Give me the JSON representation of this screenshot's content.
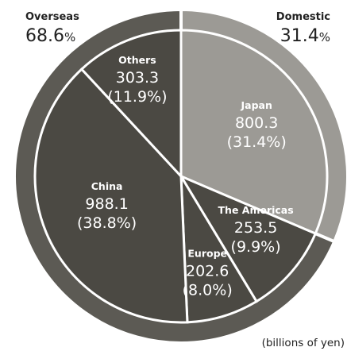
{
  "chart_data": {
    "type": "pie",
    "unit_note": "(billions of yen)",
    "groups": [
      {
        "name": "Domestic",
        "percent": "31.4",
        "percent_sign": "%",
        "color": "#9c9a95"
      },
      {
        "name": "Overseas",
        "percent": "68.6",
        "percent_sign": "%",
        "color": "#5c5a54"
      }
    ],
    "slices": [
      {
        "name": "Japan",
        "value": 800.3,
        "value_label": "800.3",
        "percent_label": "(31.4%)",
        "group": "Domestic",
        "color": "#9c9a95"
      },
      {
        "name": "The Americas",
        "value": 253.5,
        "value_label": "253.5",
        "percent_label": "(9.9%)",
        "group": "Overseas",
        "color": "#4b4943"
      },
      {
        "name": "Europe",
        "value": 202.6,
        "value_label": "202.6",
        "percent_label": "(8.0%)",
        "group": "Overseas",
        "color": "#4b4943"
      },
      {
        "name": "China",
        "value": 988.1,
        "value_label": "988.1",
        "percent_label": "(38.8%)",
        "group": "Overseas",
        "color": "#4b4943"
      },
      {
        "name": "Others",
        "value": 303.3,
        "value_label": "303.3",
        "percent_label": "(11.9%)",
        "group": "Overseas",
        "color": "#4b4943"
      }
    ]
  }
}
